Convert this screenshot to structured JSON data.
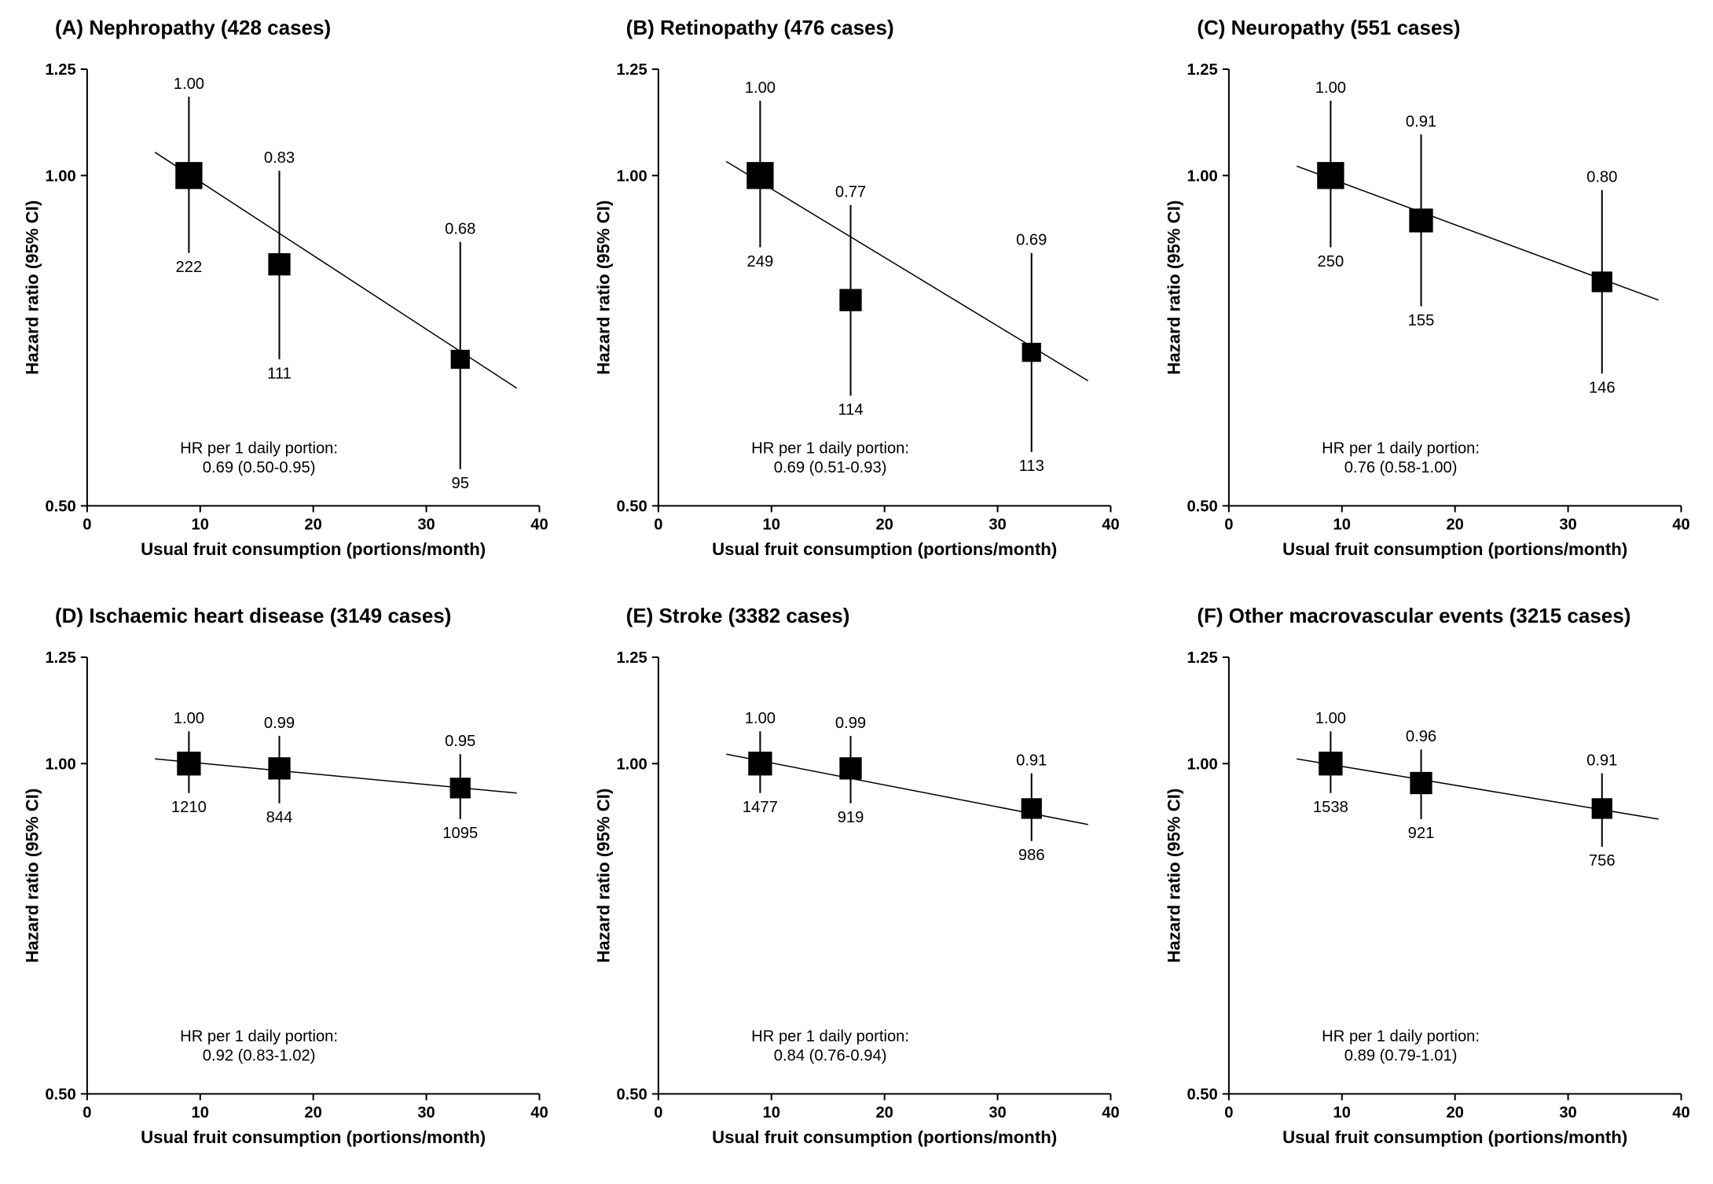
{
  "figure": {
    "background_color": "#ffffff",
    "marker_color": "#000000",
    "line_color": "#000000",
    "text_color": "#000000",
    "font_family": "Arial",
    "title_fontsize": 26,
    "axis_label_fontsize": 22,
    "tick_label_fontsize": 20,
    "point_label_fontsize": 20,
    "xlabel": "Usual fruit consumption (portions/month)",
    "ylabel": "Hazard ratio (95% CI)",
    "xlim": [
      0,
      40
    ],
    "xtick_step": 10,
    "xticks": [
      0,
      10,
      20,
      30,
      40
    ],
    "ylim": [
      0.5,
      1.25
    ],
    "yscale": "log",
    "yticks": [
      0.5,
      1.0,
      1.25
    ],
    "ytick_labels": [
      "0.50",
      "1.00",
      "1.25"
    ],
    "trend_x_extent": [
      6,
      38
    ],
    "hr_annot_prefix": "HR per 1 daily portion:",
    "panels": [
      {
        "id": "A",
        "title": "(A)  Nephropathy (428 cases)",
        "points": [
          {
            "x": 9,
            "hr": 1.0,
            "lo": 0.85,
            "hi": 1.18,
            "n": 222,
            "size": 34
          },
          {
            "x": 17,
            "hr": 0.83,
            "lo": 0.68,
            "hi": 1.01,
            "n": 111,
            "size": 28
          },
          {
            "x": 33,
            "hr": 0.68,
            "lo": 0.54,
            "hi": 0.87,
            "n": 95,
            "size": 24
          }
        ],
        "trend_hr_ends": [
          1.05,
          0.64
        ],
        "hr_text": "0.69 (0.50-0.95)"
      },
      {
        "id": "B",
        "title": "(B)  Retinopathy (476 cases)",
        "points": [
          {
            "x": 9,
            "hr": 1.0,
            "lo": 0.86,
            "hi": 1.17,
            "n": 249,
            "size": 34
          },
          {
            "x": 17,
            "hr": 0.77,
            "lo": 0.63,
            "hi": 0.94,
            "n": 114,
            "size": 28
          },
          {
            "x": 33,
            "hr": 0.69,
            "lo": 0.56,
            "hi": 0.85,
            "n": 113,
            "size": 24
          }
        ],
        "trend_hr_ends": [
          1.03,
          0.65
        ],
        "hr_text": "0.69 (0.51-0.93)"
      },
      {
        "id": "C",
        "title": "(C)  Neuropathy (551 cases)",
        "points": [
          {
            "x": 9,
            "hr": 1.0,
            "lo": 0.86,
            "hi": 1.17,
            "n": 250,
            "size": 34
          },
          {
            "x": 17,
            "hr": 0.91,
            "lo": 0.76,
            "hi": 1.09,
            "n": 155,
            "size": 30
          },
          {
            "x": 33,
            "hr": 0.8,
            "lo": 0.66,
            "hi": 0.97,
            "n": 146,
            "size": 26
          }
        ],
        "trend_hr_ends": [
          1.02,
          0.77
        ],
        "hr_text": "0.76 (0.58-1.00)"
      },
      {
        "id": "D",
        "title": "(D)  Ischaemic heart disease (3149 cases)",
        "points": [
          {
            "x": 9,
            "hr": 1.0,
            "lo": 0.94,
            "hi": 1.07,
            "n": 1210,
            "size": 30
          },
          {
            "x": 17,
            "hr": 0.99,
            "lo": 0.92,
            "hi": 1.06,
            "n": 844,
            "size": 28
          },
          {
            "x": 33,
            "hr": 0.95,
            "lo": 0.89,
            "hi": 1.02,
            "n": 1095,
            "size": 26
          }
        ],
        "trend_hr_ends": [
          1.01,
          0.94
        ],
        "hr_text": "0.92 (0.83-1.02)"
      },
      {
        "id": "E",
        "title": "(E)  Stroke (3382 cases)",
        "points": [
          {
            "x": 9,
            "hr": 1.0,
            "lo": 0.94,
            "hi": 1.07,
            "n": 1477,
            "size": 30
          },
          {
            "x": 17,
            "hr": 0.99,
            "lo": 0.92,
            "hi": 1.06,
            "n": 919,
            "size": 28
          },
          {
            "x": 33,
            "hr": 0.91,
            "lo": 0.85,
            "hi": 0.98,
            "n": 986,
            "size": 26
          }
        ],
        "trend_hr_ends": [
          1.02,
          0.88
        ],
        "hr_text": "0.84 (0.76-0.94)"
      },
      {
        "id": "F",
        "title": "(F)  Other macrovascular events (3215 cases)",
        "points": [
          {
            "x": 9,
            "hr": 1.0,
            "lo": 0.94,
            "hi": 1.07,
            "n": 1538,
            "size": 30
          },
          {
            "x": 17,
            "hr": 0.96,
            "lo": 0.89,
            "hi": 1.03,
            "n": 921,
            "size": 28
          },
          {
            "x": 33,
            "hr": 0.91,
            "lo": 0.84,
            "hi": 0.98,
            "n": 756,
            "size": 26
          }
        ],
        "trend_hr_ends": [
          1.01,
          0.89
        ],
        "hr_text": "0.89 (0.79-1.01)"
      }
    ]
  }
}
